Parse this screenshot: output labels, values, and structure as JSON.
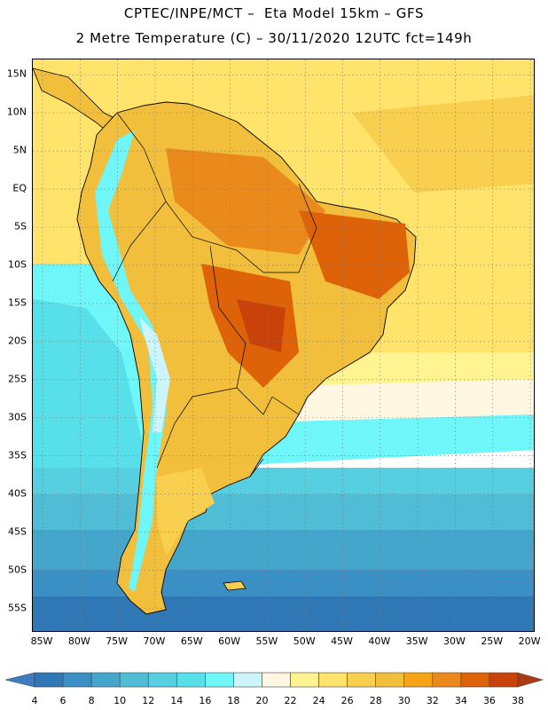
{
  "header": {
    "line1": "CPTEC/INPE/MCT –  Eta Model 15km – GFS",
    "line2": "2 Metre Temperature (C) – 30/11/2020 12UTC fct=149h"
  },
  "axes": {
    "lat_labels": [
      "15N",
      "10N",
      "5N",
      "EQ",
      "5S",
      "10S",
      "15S",
      "20S",
      "25S",
      "30S",
      "35S",
      "40S",
      "45S",
      "50S",
      "55S"
    ],
    "lat_values": [
      15,
      10,
      5,
      0,
      -5,
      -10,
      -15,
      -20,
      -25,
      -30,
      -35,
      -40,
      -45,
      -50,
      -55
    ],
    "lon_labels": [
      "85W",
      "80W",
      "75W",
      "70W",
      "65W",
      "60W",
      "55W",
      "50W",
      "45W",
      "40W",
      "35W",
      "30W",
      "25W",
      "20W"
    ],
    "lon_values": [
      -85,
      -80,
      -75,
      -70,
      -65,
      -60,
      -55,
      -50,
      -45,
      -40,
      -35,
      -30,
      -25,
      -20
    ]
  },
  "colorbar": {
    "labels": [
      "4",
      "6",
      "8",
      "10",
      "12",
      "14",
      "16",
      "18",
      "20",
      "22",
      "24",
      "26",
      "28",
      "30",
      "32",
      "34",
      "36",
      "38"
    ],
    "colors": [
      "#3d7cc0",
      "#2f77b5",
      "#3a8fc4",
      "#45a6cc",
      "#50bcd6",
      "#56cfe0",
      "#58e0ea",
      "#6ff6f8",
      "#ccf4fb",
      "#fff7e2",
      "#fff491",
      "#ffe36b",
      "#f8cf4e",
      "#f1bf3c",
      "#f4a414",
      "#eb8a1c",
      "#dd6208",
      "#c9420a",
      "#ad3a12"
    ]
  }
}
